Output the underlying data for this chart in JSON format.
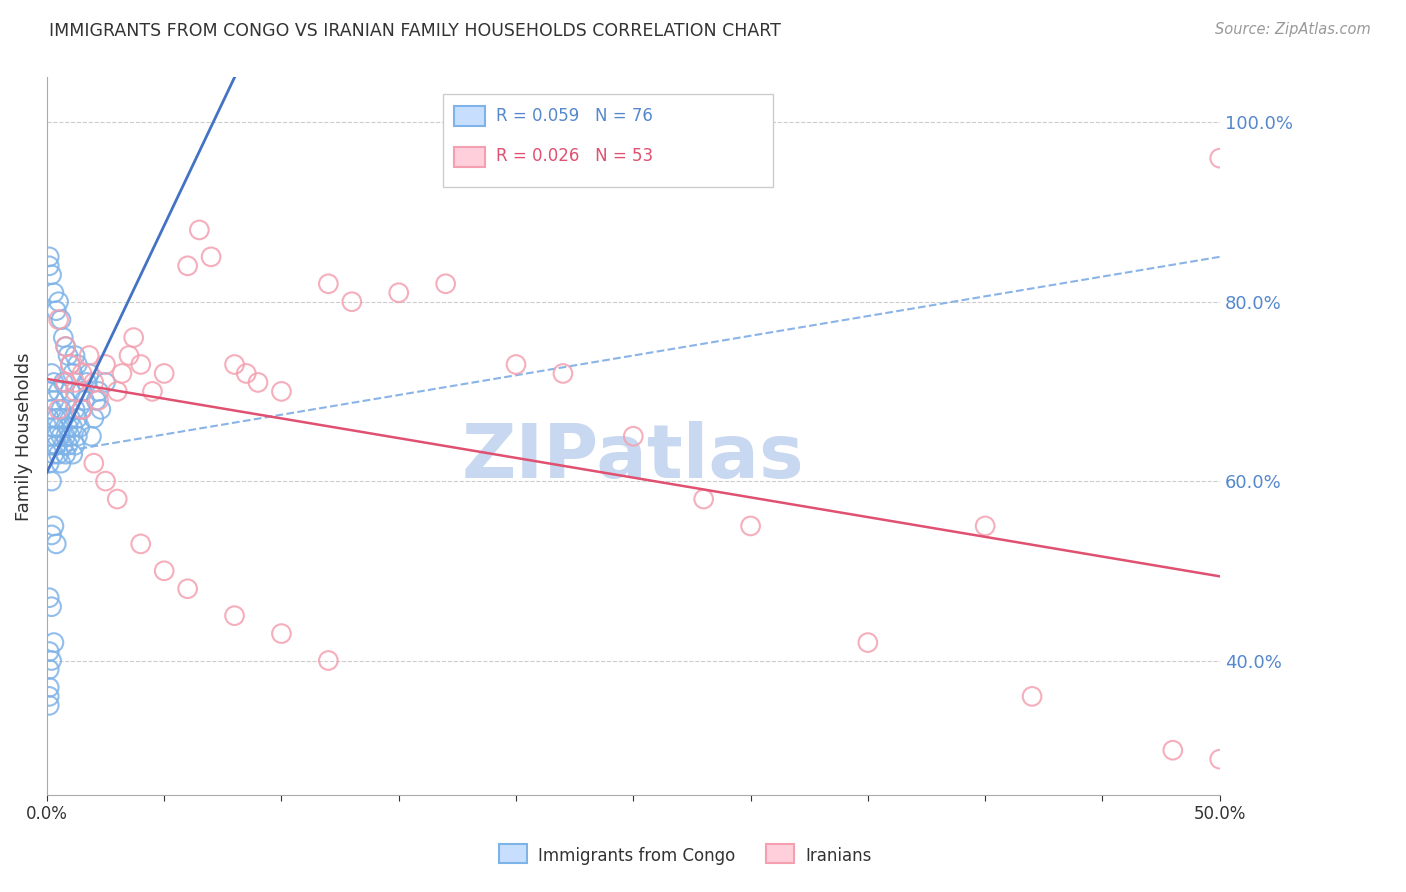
{
  "title": "IMMIGRANTS FROM CONGO VS IRANIAN FAMILY HOUSEHOLDS CORRELATION CHART",
  "source": "Source: ZipAtlas.com",
  "ylabel": "Family Households",
  "right_yticks": [
    "100.0%",
    "80.0%",
    "60.0%",
    "40.0%"
  ],
  "right_ytick_vals": [
    1.0,
    0.8,
    0.6,
    0.4
  ],
  "legend_r1": "R = 0.059",
  "legend_n1": "N = 76",
  "legend_r2": "R = 0.026",
  "legend_n2": "N = 53",
  "legend_label1": "Immigrants from Congo",
  "legend_label2": "Iranians",
  "xlim": [
    0.0,
    0.5
  ],
  "ylim": [
    0.25,
    1.05
  ],
  "gridline_color": "#cccccc",
  "background_color": "#ffffff",
  "scatter_congo_color": "#7EB3E8",
  "scatter_iran_color": "#F4A0B0",
  "line_congo_color": "#4472C4",
  "line_iran_color": "#E05070",
  "dash_line_color": "#8AB4E8",
  "watermark_color": "#C8D8F0",
  "congo_x": [
    0.001,
    0.001,
    0.001,
    0.001,
    0.002,
    0.002,
    0.002,
    0.002,
    0.003,
    0.003,
    0.003,
    0.003,
    0.004,
    0.004,
    0.004,
    0.005,
    0.005,
    0.005,
    0.006,
    0.006,
    0.006,
    0.007,
    0.007,
    0.007,
    0.008,
    0.008,
    0.008,
    0.009,
    0.009,
    0.01,
    0.01,
    0.01,
    0.011,
    0.011,
    0.012,
    0.012,
    0.013,
    0.013,
    0.014,
    0.015,
    0.015,
    0.016,
    0.017,
    0.018,
    0.019,
    0.02,
    0.021,
    0.022,
    0.023,
    0.025,
    0.002,
    0.003,
    0.004,
    0.005,
    0.006,
    0.007,
    0.008,
    0.009,
    0.01,
    0.011,
    0.012,
    0.013,
    0.002,
    0.003,
    0.004,
    0.001,
    0.002,
    0.001,
    0.001,
    0.001,
    0.002,
    0.003,
    0.001,
    0.001,
    0.001,
    0.001
  ],
  "congo_y": [
    0.67,
    0.62,
    0.64,
    0.7,
    0.65,
    0.68,
    0.72,
    0.6,
    0.66,
    0.63,
    0.69,
    0.71,
    0.64,
    0.67,
    0.65,
    0.63,
    0.66,
    0.7,
    0.65,
    0.68,
    0.62,
    0.64,
    0.67,
    0.71,
    0.65,
    0.63,
    0.69,
    0.66,
    0.64,
    0.67,
    0.65,
    0.7,
    0.63,
    0.66,
    0.64,
    0.68,
    0.65,
    0.67,
    0.66,
    0.68,
    0.7,
    0.69,
    0.71,
    0.72,
    0.65,
    0.67,
    0.69,
    0.7,
    0.68,
    0.71,
    0.83,
    0.81,
    0.79,
    0.8,
    0.78,
    0.76,
    0.75,
    0.74,
    0.73,
    0.72,
    0.74,
    0.73,
    0.54,
    0.55,
    0.53,
    0.47,
    0.46,
    0.41,
    0.39,
    0.37,
    0.4,
    0.42,
    0.84,
    0.85,
    0.36,
    0.35
  ],
  "iran_x": [
    0.005,
    0.008,
    0.01,
    0.012,
    0.015,
    0.015,
    0.018,
    0.02,
    0.022,
    0.025,
    0.03,
    0.032,
    0.035,
    0.037,
    0.04,
    0.045,
    0.05,
    0.06,
    0.065,
    0.07,
    0.08,
    0.085,
    0.09,
    0.1,
    0.12,
    0.13,
    0.15,
    0.17,
    0.2,
    0.22,
    0.25,
    0.28,
    0.3,
    0.35,
    0.4,
    0.42,
    0.48,
    0.005,
    0.008,
    0.01,
    0.012,
    0.015,
    0.02,
    0.025,
    0.03,
    0.04,
    0.05,
    0.06,
    0.08,
    0.1,
    0.12,
    0.5,
    0.5
  ],
  "iran_y": [
    0.68,
    0.71,
    0.73,
    0.7,
    0.68,
    0.72,
    0.74,
    0.71,
    0.69,
    0.73,
    0.7,
    0.72,
    0.74,
    0.76,
    0.73,
    0.7,
    0.72,
    0.84,
    0.88,
    0.85,
    0.73,
    0.72,
    0.71,
    0.7,
    0.82,
    0.8,
    0.81,
    0.82,
    0.73,
    0.72,
    0.65,
    0.58,
    0.55,
    0.42,
    0.55,
    0.36,
    0.3,
    0.78,
    0.75,
    0.73,
    0.71,
    0.68,
    0.62,
    0.6,
    0.58,
    0.53,
    0.5,
    0.48,
    0.45,
    0.43,
    0.4,
    0.96,
    0.29
  ]
}
